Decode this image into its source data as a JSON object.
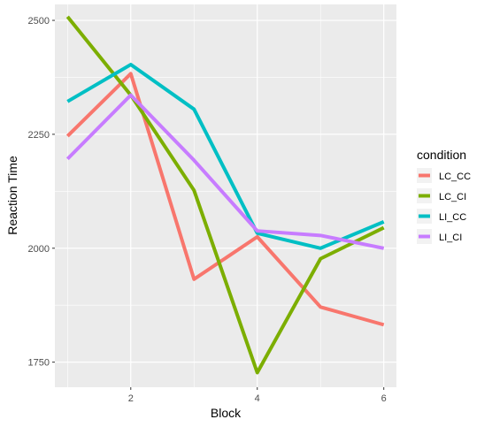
{
  "chart_data": {
    "type": "line",
    "xlabel": "Block",
    "ylabel": "Reaction Time",
    "x": [
      1,
      2,
      3,
      4,
      5,
      6
    ],
    "xlim": [
      0.8,
      6.2
    ],
    "ylim": [
      1695,
      2535
    ],
    "x_ticks": [
      2,
      4,
      6
    ],
    "y_ticks": [
      1750,
      2000,
      2250,
      2500
    ],
    "grid": true,
    "legend": {
      "title": "condition",
      "position": "right"
    },
    "series": [
      {
        "name": "LC_CC",
        "color": "#F8766D",
        "values": [
          2246,
          2383,
          1932,
          2025,
          1871,
          1832
        ]
      },
      {
        "name": "LC_CI",
        "color": "#7CAE00",
        "values": [
          2508,
          2336,
          2127,
          1727,
          1977,
          2045
        ]
      },
      {
        "name": "LI_CC",
        "color": "#00BFC4",
        "values": [
          2322,
          2403,
          2305,
          2033,
          2000,
          2058
        ]
      },
      {
        "name": "LI_CI",
        "color": "#C77CFF",
        "values": [
          2196,
          2336,
          2193,
          2038,
          2028,
          2000
        ]
      }
    ]
  }
}
